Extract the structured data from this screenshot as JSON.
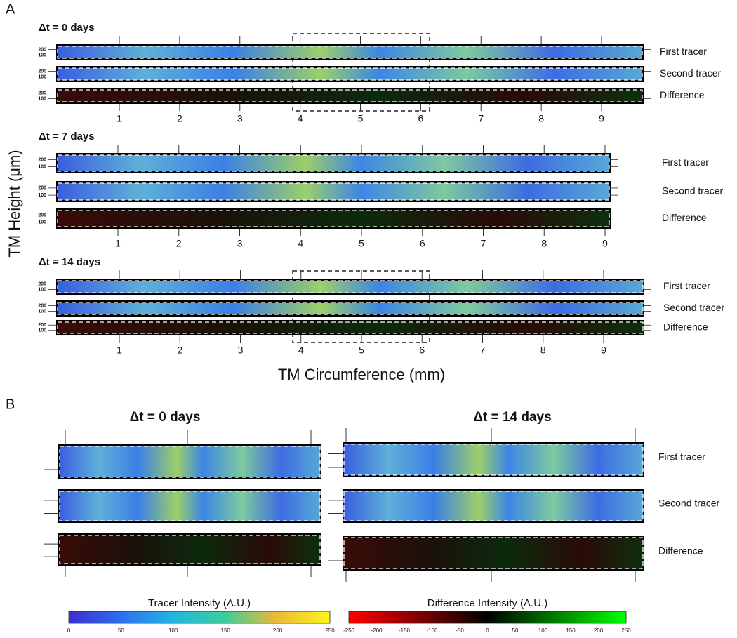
{
  "panel_a": {
    "label": "A",
    "y_label": "TM Height (μm)",
    "x_label": "TM Circumference (mm)",
    "groups": [
      {
        "title": "Δt =  0 days",
        "rows": [
          "First tracer",
          "Second tracer",
          "Difference"
        ],
        "height_ticks": [
          200,
          100
        ],
        "x_ticks": [
          1,
          2,
          3,
          4,
          5,
          6,
          7,
          8,
          9
        ]
      },
      {
        "title": "Δt =  7 days",
        "rows": [
          "First tracer",
          "Second tracer",
          "Difference"
        ],
        "height_ticks": [
          200,
          100
        ],
        "x_ticks": [
          1,
          2,
          3,
          4,
          5,
          6,
          7,
          8,
          9
        ]
      },
      {
        "title": "Δt =  14 days",
        "rows": [
          "First tracer",
          "Second tracer",
          "Difference"
        ],
        "height_ticks": [
          200,
          100
        ],
        "x_ticks": [
          1,
          2,
          3,
          4,
          5,
          6,
          7,
          8,
          9
        ]
      }
    ]
  },
  "panel_b": {
    "label": "B",
    "titles": [
      "Δt =  0 days",
      "Δt =  14 days"
    ],
    "rows": [
      "First tracer",
      "Second tracer",
      "Difference"
    ]
  },
  "colorbars": [
    {
      "title": "Tracer Intensity (A.U.)",
      "ticks": [
        0,
        50,
        100,
        150,
        200,
        250
      ]
    },
    {
      "title": "Difference Intensity (A.U.)",
      "ticks": [
        -250,
        -200,
        -150,
        -100,
        -50,
        0,
        50,
        100,
        150,
        200,
        250
      ]
    }
  ]
}
